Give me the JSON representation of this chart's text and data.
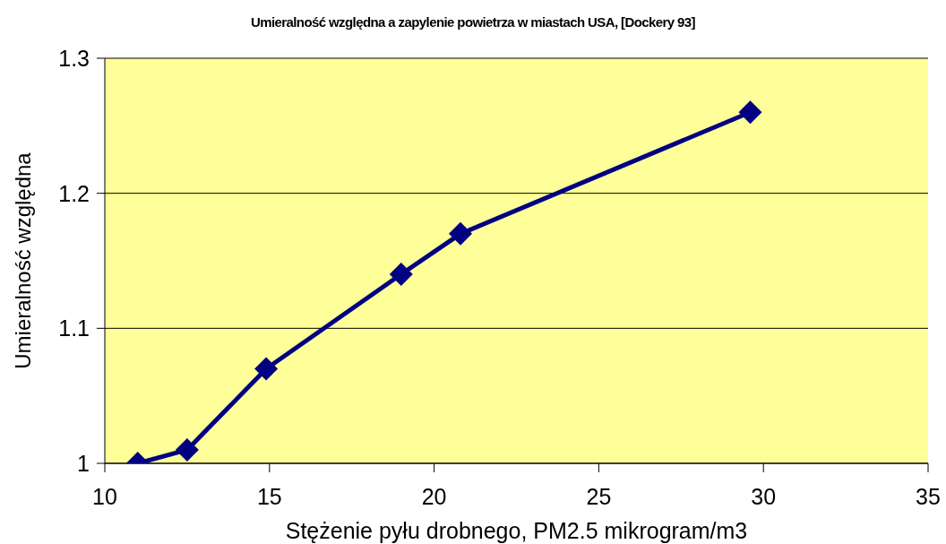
{
  "chart_data": {
    "type": "line",
    "title": "Umieralność względna a zapylenie powietrza w miastach USA, [Dockery 93]",
    "xlabel": "Stężenie pyłu drobnego, PM2.5 mikrogram/m3",
    "ylabel": "Umieralność względna",
    "x": [
      11,
      12.5,
      14.9,
      19,
      20.8,
      29.6
    ],
    "series": [
      {
        "color": "#000080",
        "values": [
          1,
          1.01,
          1.07,
          1.14,
          1.17,
          1.26
        ]
      }
    ],
    "xlim": [
      10,
      35
    ],
    "xticks": [
      10,
      15,
      20,
      25,
      30,
      35
    ],
    "ylim": [
      1,
      1.3
    ],
    "yticks": [
      1,
      1.1,
      1.2,
      1.3
    ],
    "grid": "y",
    "marker": "diamond",
    "line_style": "solid"
  }
}
